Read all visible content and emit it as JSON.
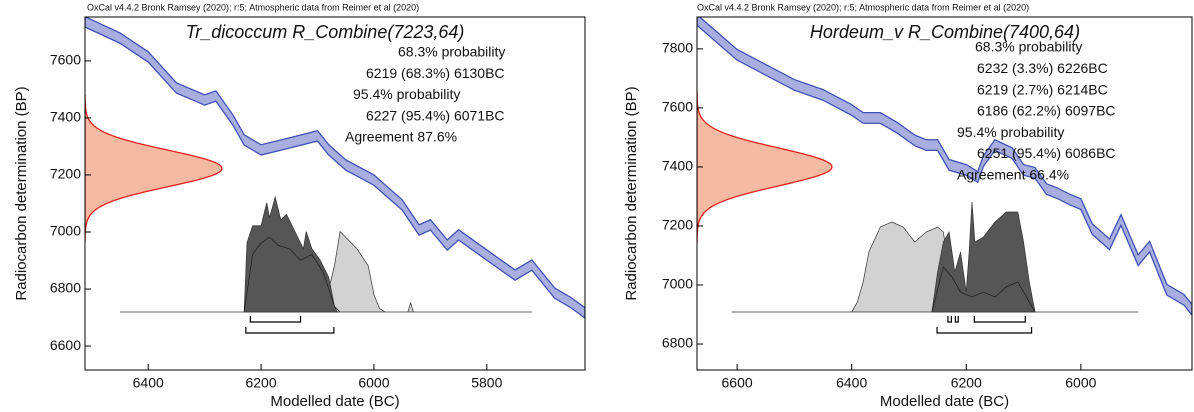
{
  "chart_data": [
    {
      "type": "calibration",
      "header": "OxCal v4.4.2 Bronk Ramsey (2020); r:5; Atmospheric data from Reimer et al (2020)",
      "title": "Tr_dicoccum R_Combine(7223,64)",
      "xlabel": "Modelled date (BC)",
      "ylabel": "Radiocarbon determination (BP)",
      "xlim": [
        6512,
        5626
      ],
      "ylim": [
        6516,
        7754
      ],
      "xticks": [
        6400,
        6200,
        6000,
        5800
      ],
      "yticks": [
        6600,
        6800,
        7000,
        7200,
        7400,
        7600
      ],
      "calibration": {
        "color": "#4150b4",
        "fill": "#a9aee0",
        "error": 18,
        "x": [
          6512,
          6450,
          6400,
          6350,
          6300,
          6280,
          6250,
          6230,
          6200,
          6150,
          6100,
          6080,
          6050,
          6000,
          5980,
          5950,
          5920,
          5900,
          5870,
          5850,
          5800,
          5750,
          5720,
          5680,
          5650,
          5626
        ],
        "values": [
          7737,
          7680,
          7614,
          7505,
          7463,
          7477,
          7393,
          7323,
          7288,
          7312,
          7337,
          7288,
          7235,
          7182,
          7147,
          7095,
          7007,
          7025,
          6954,
          6990,
          6919,
          6849,
          6884,
          6786,
          6751,
          6716
        ]
      },
      "measurement": {
        "mean": 7223,
        "sd": 64,
        "color": "#e02020",
        "fill": "#f6b9a2"
      },
      "distributions": [
        {
          "style": "fill",
          "color": "#d2d2d2",
          "x": [
            6450,
            6090,
            6070,
            6060,
            6050,
            6040,
            6030,
            6010,
            6000,
            5990,
            5980,
            5940,
            5935,
            5930,
            5720
          ],
          "values": [
            0,
            0,
            40,
            70,
            65,
            60,
            55,
            40,
            15,
            3,
            0,
            0,
            8,
            0,
            0
          ]
        },
        {
          "style": "fill",
          "color": "#565656",
          "x": [
            6230,
            6225,
            6215,
            6200,
            6190,
            6185,
            6175,
            6165,
            6155,
            6140,
            6125,
            6120,
            6110,
            6095,
            6080,
            6070,
            6065
          ],
          "values": [
            0,
            60,
            75,
            75,
            95,
            82,
            100,
            80,
            85,
            70,
            55,
            70,
            55,
            45,
            30,
            5,
            0
          ]
        },
        {
          "style": "line",
          "color": "#222222",
          "x": [
            6230,
            6215,
            6200,
            6185,
            6170,
            6150,
            6130,
            6110,
            6090,
            6070,
            6060
          ],
          "values": [
            0,
            50,
            60,
            65,
            58,
            55,
            45,
            50,
            35,
            5,
            0
          ]
        }
      ],
      "probabilities": [
        {
          "label": "68.3% probability",
          "ranges": [
            {
              "start": 6219,
              "end": 6130,
              "label": "6219 (68.3%) 6130BC"
            }
          ]
        },
        {
          "label": "95.4% probability",
          "ranges": [
            {
              "start": 6227,
              "end": 6071,
              "label": "6227 (95.4%) 6071BC"
            }
          ]
        }
      ],
      "agreement": "Agreement 87.6%"
    },
    {
      "type": "calibration",
      "header": "OxCal v4.4.2 Bronk Ramsey (2020); r:5; Atmospheric data from Reimer et al (2020)",
      "title": "Hordeum_v R_Combine(7400,64)",
      "xlabel": "Modelled date (BC)",
      "ylabel": "Radiocarbon determination (BP)",
      "xlim": [
        6670,
        5806
      ],
      "ylim": [
        6712,
        7908
      ],
      "xticks": [
        6600,
        6400,
        6200,
        6000
      ],
      "yticks": [
        6800,
        7000,
        7200,
        7400,
        7600,
        7800
      ],
      "calibration": {
        "color": "#4150b4",
        "fill": "#a9aee0",
        "error": 18,
        "x": [
          6670,
          6650,
          6600,
          6550,
          6500,
          6450,
          6400,
          6380,
          6350,
          6320,
          6290,
          6270,
          6250,
          6230,
          6200,
          6180,
          6170,
          6150,
          6120,
          6100,
          6080,
          6060,
          6040,
          6020,
          6000,
          5980,
          5950,
          5930,
          5900,
          5880,
          5850,
          5820,
          5806
        ],
        "values": [
          7898,
          7864,
          7780,
          7729,
          7678,
          7644,
          7593,
          7566,
          7566,
          7532,
          7490,
          7474,
          7474,
          7407,
          7390,
          7366,
          7420,
          7474,
          7447,
          7390,
          7380,
          7325,
          7310,
          7290,
          7274,
          7189,
          7138,
          7220,
          7084,
          7130,
          6984,
          6950,
          6916
        ]
      },
      "measurement": {
        "mean": 7400,
        "sd": 64,
        "color": "#e02020",
        "fill": "#f6b9a2"
      },
      "distributions": [
        {
          "style": "fill",
          "color": "#d2d2d2",
          "x": [
            6610,
            6400,
            6390,
            6380,
            6370,
            6350,
            6330,
            6310,
            6290,
            6270,
            6250,
            6240,
            6230,
            6200,
            6100,
            5900
          ],
          "values": [
            0,
            0,
            10,
            30,
            60,
            85,
            90,
            85,
            70,
            80,
            85,
            80,
            40,
            10,
            0,
            0
          ]
        },
        {
          "style": "fill",
          "color": "#565656",
          "x": [
            6260,
            6250,
            6240,
            6230,
            6220,
            6210,
            6200,
            6195,
            6190,
            6185,
            6170,
            6150,
            6130,
            6110,
            6100,
            6090,
            6080
          ],
          "values": [
            0,
            40,
            70,
            80,
            40,
            60,
            20,
            60,
            110,
            70,
            75,
            90,
            100,
            100,
            70,
            30,
            0
          ]
        },
        {
          "style": "line",
          "color": "#222222",
          "x": [
            6260,
            6240,
            6225,
            6210,
            6190,
            6170,
            6150,
            6130,
            6110,
            6095,
            6080
          ],
          "values": [
            0,
            45,
            35,
            20,
            15,
            20,
            15,
            25,
            30,
            15,
            0
          ]
        }
      ],
      "probabilities": [
        {
          "label": "68.3% probability",
          "ranges": [
            {
              "start": 6232,
              "end": 6226,
              "label": "6232 (3.3%) 6226BC"
            },
            {
              "start": 6219,
              "end": 6214,
              "label": "6219 (2.7%) 6214BC"
            },
            {
              "start": 6186,
              "end": 6097,
              "label": "6186 (62.2%) 6097BC"
            }
          ]
        },
        {
          "label": "95.4% probability",
          "ranges": [
            {
              "start": 6251,
              "end": 6086,
              "label": "6251 (95.4%) 6086BC"
            }
          ]
        }
      ],
      "agreement": "Agreement 66.4%"
    }
  ]
}
